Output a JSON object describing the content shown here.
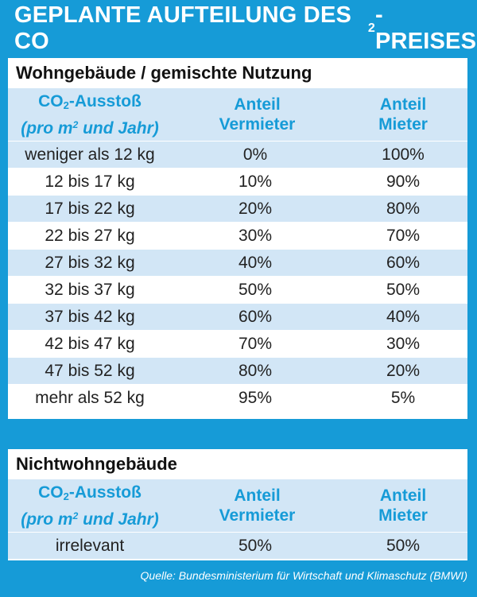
{
  "title": {
    "main": "GEPLANTE AUFTEILUNG DES CO",
    "sub": "2",
    "rest": "-PREISES"
  },
  "colors": {
    "brand_blue": "#169bd7",
    "stripe": "#d2e6f6",
    "text": "#222222"
  },
  "section1": {
    "heading": "Wohngebäude / gemischte Nutzung",
    "col1": {
      "line1_a": "CO",
      "line1_sub": "2",
      "line1_b": "-Ausstoß",
      "line2_a": "(pro m",
      "line2_sup": "2",
      "line2_b": " und Jahr)"
    },
    "col2": {
      "line1": "Anteil",
      "line2": "Vermieter"
    },
    "col3": {
      "line1": "Anteil",
      "line2": "Mieter"
    },
    "rows": [
      {
        "range": "weniger als 12 kg",
        "landlord": "0%",
        "tenant": "100%"
      },
      {
        "range": "12 bis 17 kg",
        "landlord": "10%",
        "tenant": "90%"
      },
      {
        "range": "17 bis 22 kg",
        "landlord": "20%",
        "tenant": "80%"
      },
      {
        "range": "22 bis 27 kg",
        "landlord": "30%",
        "tenant": "70%"
      },
      {
        "range": "27 bis 32 kg",
        "landlord": "40%",
        "tenant": "60%"
      },
      {
        "range": "32 bis 37 kg",
        "landlord": "50%",
        "tenant": "50%"
      },
      {
        "range": "37 bis 42 kg",
        "landlord": "60%",
        "tenant": "40%"
      },
      {
        "range": "42 bis 47 kg",
        "landlord": "70%",
        "tenant": "30%"
      },
      {
        "range": "47 bis 52 kg",
        "landlord": "80%",
        "tenant": "20%"
      },
      {
        "range": "mehr als 52 kg",
        "landlord": "95%",
        "tenant": "5%"
      }
    ]
  },
  "section2": {
    "heading": "Nichtwohngebäude",
    "rows": [
      {
        "range": "irrelevant",
        "landlord": "50%",
        "tenant": "50%"
      }
    ]
  },
  "source": "Quelle: Bundesministerium für Wirtschaft und Klimaschutz (BMWI)"
}
